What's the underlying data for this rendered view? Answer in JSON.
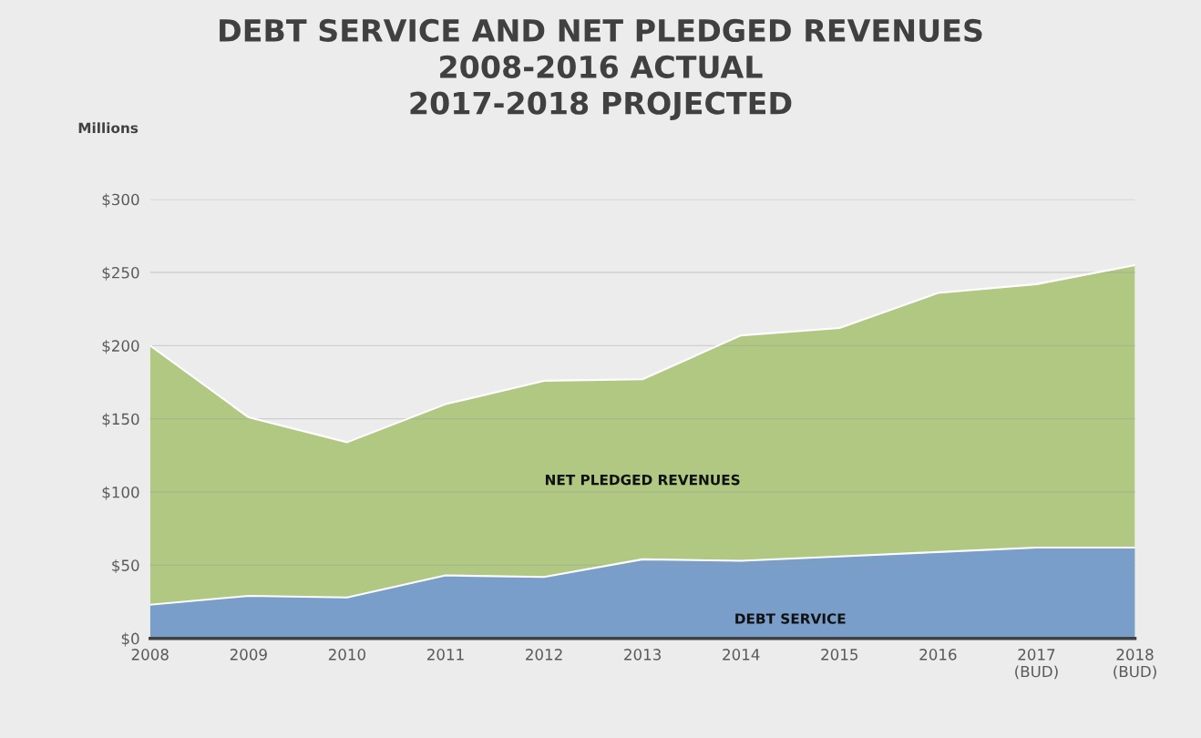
{
  "chart_data": {
    "type": "area",
    "title": "DEBT SERVICE AND NET PLEDGED REVENUES\n2008-2016 ACTUAL\n2017-2018 PROJECTED",
    "ylabel": "Millions",
    "categories": [
      "2008",
      "2009",
      "2010",
      "2011",
      "2012",
      "2013",
      "2014",
      "2015",
      "2016",
      "2017\n(BUD)",
      "2018\n(BUD)"
    ],
    "series": [
      {
        "name": "NET PLEDGED REVENUES",
        "color": "#b0c882",
        "values": [
          200,
          151,
          134,
          160,
          176,
          177,
          207,
          212,
          236,
          242,
          255
        ]
      },
      {
        "name": "DEBT SERVICE",
        "color": "#789ec9",
        "values": [
          23,
          29,
          28,
          43,
          42,
          54,
          53,
          56,
          59,
          62,
          62
        ]
      }
    ],
    "ylim": [
      0,
      300
    ],
    "yticks": [
      {
        "value": 0,
        "label": "$0"
      },
      {
        "value": 50,
        "label": "$50"
      },
      {
        "value": 100,
        "label": "$100"
      },
      {
        "value": 150,
        "label": "$150"
      },
      {
        "value": 200,
        "label": "$200"
      },
      {
        "value": 250,
        "label": "$250"
      },
      {
        "value": 300,
        "label": "$300"
      }
    ],
    "grid": "y",
    "legend": false
  }
}
